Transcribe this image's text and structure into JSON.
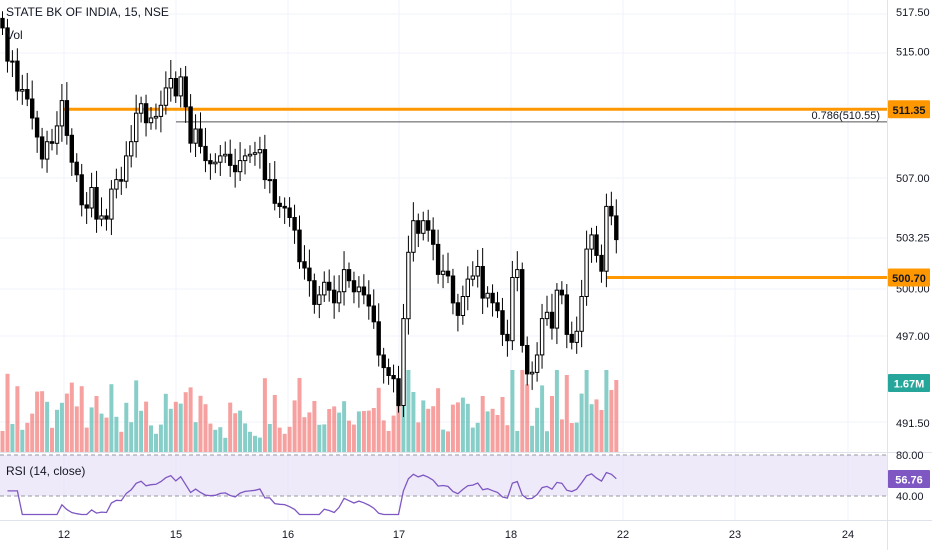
{
  "header": {
    "symbol_title": "STATE BK OF INDIA, 15, NSE",
    "vol_label": "Vol"
  },
  "rsi": {
    "label": "RSI (14, close)",
    "value": "56.76",
    "upper": 80,
    "lower": 40,
    "upper_label": "80.00",
    "lower_label": "40.00"
  },
  "volume_badge": "1.67M",
  "fib": {
    "label": "0.786(510.55)",
    "value": 510.55
  },
  "levels": [
    {
      "value": 511.35,
      "label": "511.35"
    },
    {
      "value": 500.7,
      "label": "500.70"
    }
  ],
  "colors": {
    "up": "#26a69a",
    "down": "#ef5350",
    "candle_body_up": "#ffffff",
    "candle": "#000000",
    "level": "#ff9800",
    "rsi_line": "#7e57c2",
    "rsi_band": "#e1d9f5",
    "vol_badge": "#26a69a"
  },
  "chart_data": {
    "type": "candlestick",
    "title": "STATE BK OF INDIA, 15, NSE",
    "price_axis_ticks": [
      517.5,
      515.0,
      507.0,
      503.25,
      500.0,
      497.0,
      491.5
    ],
    "price_axis_tick_labels": [
      "517.50",
      "515.00",
      "507.00",
      "503.25",
      "500.00",
      "497.00",
      "491.50"
    ],
    "x_ticks": [
      "12",
      "15",
      "16",
      "17",
      "18",
      "22",
      "23",
      "24"
    ],
    "series": [
      {
        "name": "price",
        "type": "candlestick",
        "close": [
          516.5,
          514.4,
          514.4,
          512.5,
          512.6,
          512,
          510.8,
          509.6,
          508.2,
          509.3,
          509.2,
          510.3,
          511.9,
          509.7,
          508,
          507.2,
          505.3,
          505.1,
          506.4,
          504.4,
          504.6,
          504.4,
          506.3,
          506.9,
          506.8,
          508.4,
          509.3,
          511.1,
          511.7,
          510.5,
          510.8,
          510.9,
          511.6,
          512.7,
          513.3,
          512.2,
          513.4,
          511.5,
          509.2,
          510.1,
          509,
          508.1,
          507.9,
          508,
          508.4,
          508.5,
          507.8,
          507.4,
          508.1,
          508.4,
          508.5,
          508.6,
          508.8,
          506.9,
          506.9,
          505.4,
          505.2,
          505.1,
          504.5,
          503.7,
          501.7,
          501.3,
          500.5,
          499,
          499.6,
          500.4,
          499.9,
          499.1,
          499.8,
          501.2,
          500.5,
          499.8,
          500.1,
          499.6,
          498.9,
          497.9,
          495.8,
          495,
          494.5,
          494.3,
          492.6,
          498.1,
          502.3,
          504.3,
          503.5,
          504.3,
          503.7,
          502.8,
          500.9,
          501.1,
          500.8,
          499.1,
          498.3,
          499.5,
          500.6,
          500.8,
          501.4,
          499.4,
          499.7,
          499.1,
          498.6,
          497.1,
          496.7,
          500.7,
          501.2,
          496.4,
          494.6,
          494.7,
          495.8,
          498.1,
          498.5,
          497.5,
          499.9,
          499.6,
          497.1,
          496.6,
          497.3,
          499.5,
          502.5,
          503.4,
          502.1,
          501.1,
          505.2,
          504.6,
          503.1
        ]
      }
    ],
    "volume_bars": 126,
    "rsi": {
      "name": "RSI (14, close)",
      "last": 56.76,
      "bands": [
        40,
        80
      ]
    },
    "fib_level": {
      "label": "0.786(510.55)",
      "value": 510.55
    },
    "horizontal_levels": [
      511.35,
      500.7
    ]
  }
}
